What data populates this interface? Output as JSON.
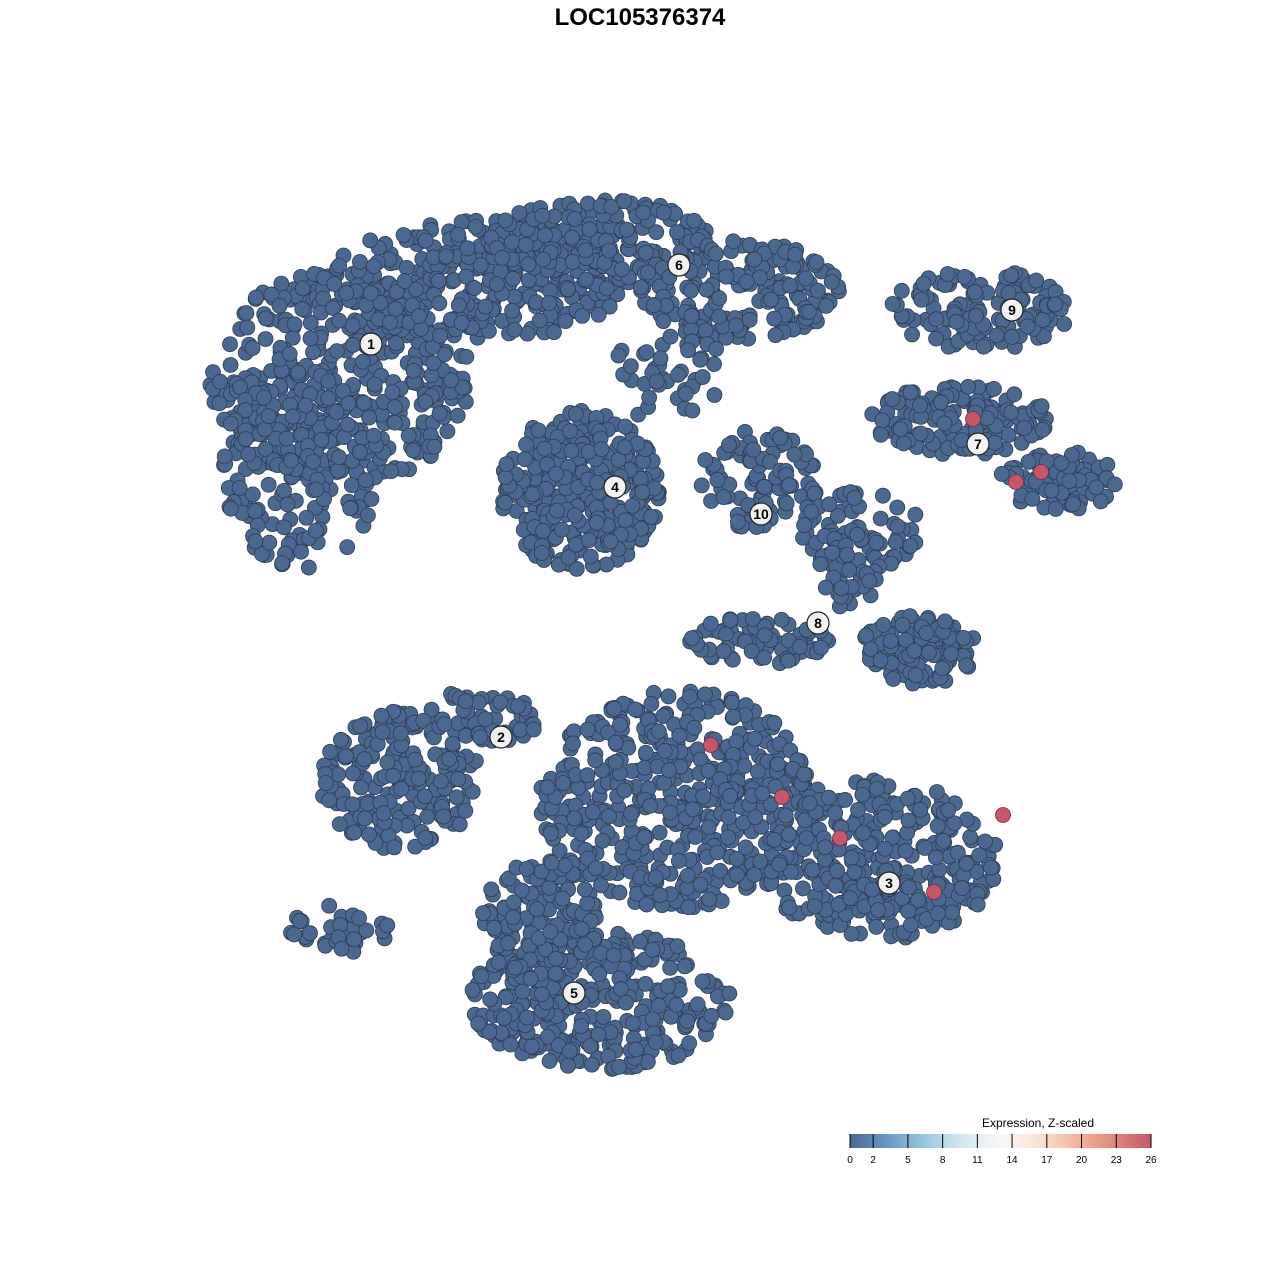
{
  "chart_data": {
    "type": "scatter",
    "title": "LOC105376374",
    "xlabel": "",
    "ylabel": "",
    "axes_visible": false,
    "grid": false,
    "point_color_default": "#4a6890",
    "cluster_labels": [
      {
        "label": "1",
        "x": -26.9,
        "y": 29.6
      },
      {
        "label": "2",
        "x": -13.9,
        "y": -9.7
      },
      {
        "label": "3",
        "x": 24.9,
        "y": -24.3
      },
      {
        "label": "4",
        "x": -2.5,
        "y": 15.3
      },
      {
        "label": "5",
        "x": -6.6,
        "y": -35.3
      },
      {
        "label": "6",
        "x": 3.9,
        "y": 37.5
      },
      {
        "label": "7",
        "x": 33.8,
        "y": 19.6
      },
      {
        "label": "8",
        "x": 17.8,
        "y": 1.7
      },
      {
        "label": "9",
        "x": 37.2,
        "y": 33.0
      },
      {
        "label": "10",
        "x": 12.1,
        "y": 12.6
      }
    ],
    "high_expression_points": [
      {
        "x": 33.3,
        "y": 22.1,
        "value": 26
      },
      {
        "x": 37.6,
        "y": 15.8,
        "value": 26
      },
      {
        "x": 40.1,
        "y": 16.8,
        "value": 26
      },
      {
        "x": 7.1,
        "y": -10.5,
        "value": 26
      },
      {
        "x": 14.2,
        "y": -15.7,
        "value": 26
      },
      {
        "x": 20.0,
        "y": -19.8,
        "value": 26
      },
      {
        "x": 29.4,
        "y": -25.2,
        "value": 26
      },
      {
        "x": 36.3,
        "y": -17.5,
        "value": 26
      }
    ],
    "legend": {
      "title": "Expression, Z-scaled",
      "placement": "bottom-right",
      "ticks": [
        "0",
        "2",
        "5",
        "8",
        "11",
        "14",
        "17",
        "20",
        "23",
        "26"
      ],
      "range": [
        0,
        26
      ],
      "colors": [
        "#4a6890",
        "#6b9ac6",
        "#9ac8e0",
        "#d6e8f2",
        "#f7f7f7",
        "#fbe2d5",
        "#f4b69c",
        "#e08a7b",
        "#c8566a"
      ]
    }
  }
}
